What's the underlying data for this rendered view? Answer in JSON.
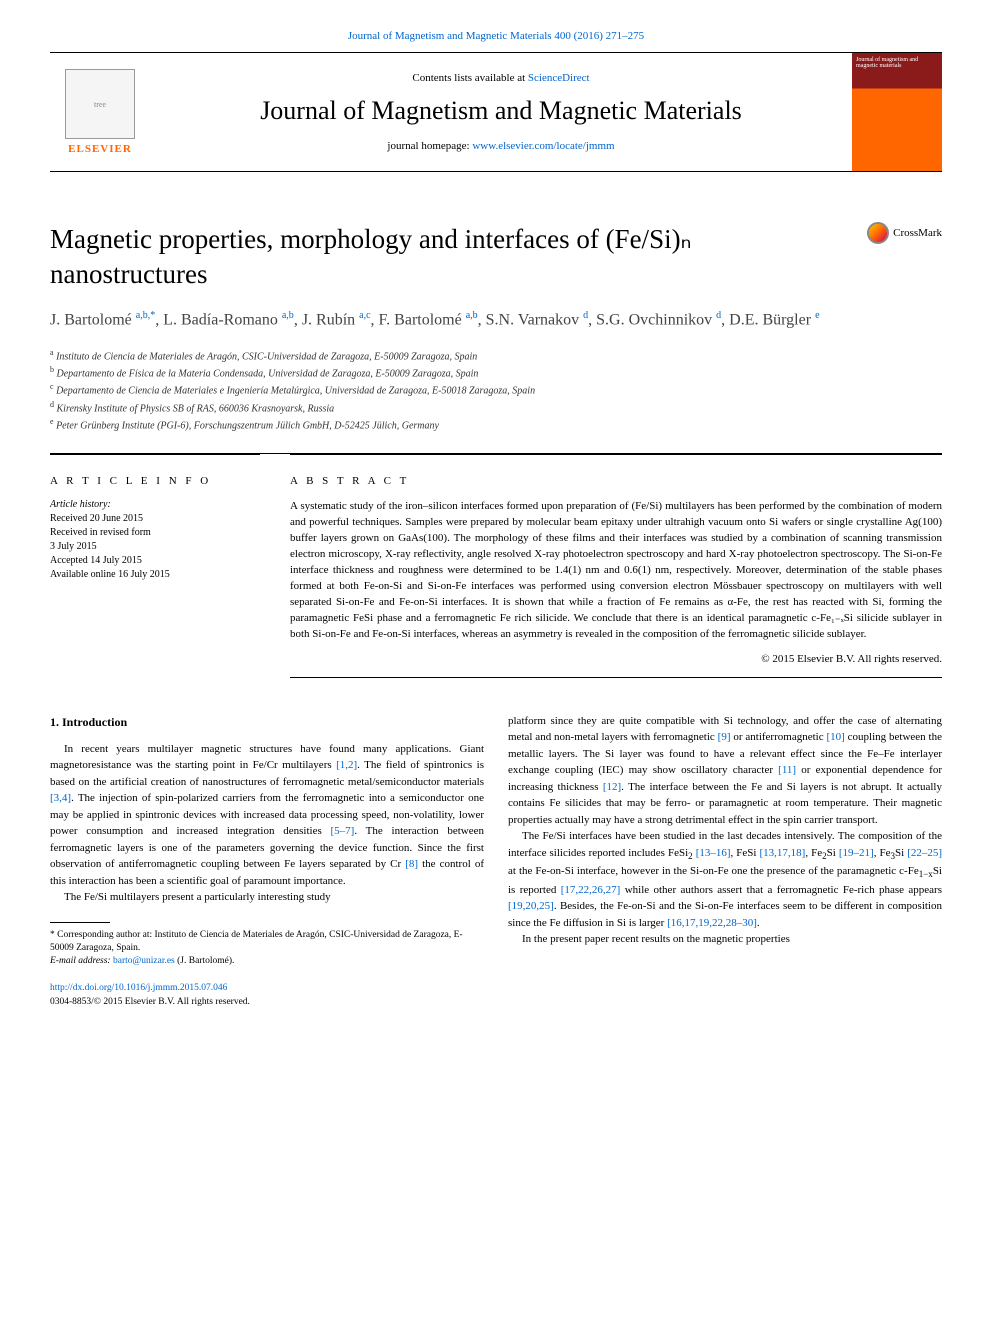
{
  "header_link": "Journal of Magnetism and Magnetic Materials 400 (2016) 271–275",
  "banner": {
    "contents_prefix": "Contents lists available at ",
    "contents_link": "ScienceDirect",
    "journal_name": "Journal of Magnetism and Magnetic Materials",
    "homepage_prefix": "journal homepage: ",
    "homepage_link": "www.elsevier.com/locate/jmmm",
    "elsevier_label": "ELSEVIER",
    "cover_text": "Journal of magnetism and magnetic materials"
  },
  "crossmark_label": "CrossMark",
  "title": "Magnetic properties, morphology and interfaces of (Fe/Si)ₙ nanostructures",
  "authors_html": "J. Bartolomé <span class='sup'>a,b,*</span>, L. Badía-Romano <span class='sup'>a,b</span>, J. Rubín <span class='sup'>a,c</span>, F. Bartolomé <span class='sup'>a,b</span>, S.N. Varnakov <span class='sup'>d</span>, S.G. Ovchinnikov <span class='sup'>d</span>, D.E. Bürgler <span class='sup'>e</span>",
  "affiliations": [
    {
      "sup": "a",
      "text": "Instituto de Ciencia de Materiales de Aragón, CSIC-Universidad de Zaragoza, E-50009 Zaragoza, Spain"
    },
    {
      "sup": "b",
      "text": "Departamento de Física de la Materia Condensada, Universidad de Zaragoza, E-50009 Zaragoza, Spain"
    },
    {
      "sup": "c",
      "text": "Departamento de Ciencia de Materiales e Ingeniería Metalúrgica, Universidad de Zaragoza, E-50018 Zaragoza, Spain"
    },
    {
      "sup": "d",
      "text": "Kirensky Institute of Physics SB of RAS, 660036 Krasnoyarsk, Russia"
    },
    {
      "sup": "e",
      "text": "Peter Grünberg Institute (PGI-6), Forschungszentrum Jülich GmbH, D-52425 Jülich, Germany"
    }
  ],
  "article_info": {
    "heading": "A R T I C L E   I N F O",
    "history_label": "Article history:",
    "history": [
      "Received 20 June 2015",
      "Received in revised form",
      "3 July 2015",
      "Accepted 14 July 2015",
      "Available online 16 July 2015"
    ]
  },
  "abstract": {
    "heading": "A B S T R A C T",
    "text": "A systematic study of the iron–silicon interfaces formed upon preparation of (Fe/Si) multilayers has been performed by the combination of modern and powerful techniques. Samples were prepared by molecular beam epitaxy under ultrahigh vacuum onto Si wafers or single crystalline Ag(100) buffer layers grown on GaAs(100). The morphology of these films and their interfaces was studied by a combination of scanning transmission electron microscopy, X-ray reflectivity, angle resolved X-ray photoelectron spectroscopy and hard X-ray photoelectron spectroscopy. The Si-on-Fe interface thickness and roughness were determined to be 1.4(1) nm and 0.6(1) nm, respectively. Moreover, determination of the stable phases formed at both Fe-on-Si and Si-on-Fe interfaces was performed using conversion electron Mössbauer spectroscopy on multilayers with well separated Si-on-Fe and Fe-on-Si interfaces. It is shown that while a fraction of Fe remains as α-Fe, the rest has reacted with Si, forming the paramagnetic FeSi phase and a ferromagnetic Fe rich silicide. We conclude that there is an identical paramagnetic c-Fe₁₋ₓSi silicide sublayer in both Si-on-Fe and Fe-on-Si interfaces, whereas an asymmetry is revealed in the composition of the ferromagnetic silicide sublayer.",
    "copyright": "© 2015 Elsevier B.V. All rights reserved."
  },
  "body": {
    "section_heading": "1. Introduction",
    "col1_p1_html": "In recent years multilayer magnetic structures have found many applications. Giant magnetoresistance was the starting point in Fe/Cr multilayers <a href='#'>[1,2]</a>. The field of spintronics is based on the artificial creation of nanostructures of ferromagnetic metal/semiconductor materials <a href='#'>[3,4]</a>. The injection of spin-polarized carriers from the ferromagnetic into a semiconductor one may be applied in spintronic devices with increased data processing speed, non-volatility, lower power consumption and increased integration densities <a href='#'>[5–7]</a>. The interaction between ferromagnetic layers is one of the parameters governing the device function. Since the first observation of antiferromagnetic coupling between Fe layers separated by Cr <a href='#'>[8]</a> the control of this interaction has been a scientific goal of paramount importance.",
    "col1_p2_html": "The Fe/Si multilayers present a particularly interesting study",
    "col2_p1_html": "platform since they are quite compatible with Si technology, and offer the case of alternating metal and non-metal layers with ferromagnetic <a href='#'>[9]</a> or antiferromagnetic <a href='#'>[10]</a> coupling between the metallic layers. The Si layer was found to have a relevant effect since the Fe–Fe interlayer exchange coupling (IEC) may show oscillatory character <a href='#'>[11]</a> or exponential dependence for increasing thickness <a href='#'>[12]</a>. The interface between the Fe and Si layers is not abrupt. It actually contains Fe silicides that may be ferro- or paramagnetic at room temperature. Their magnetic properties actually may have a strong detrimental effect in the spin carrier transport.",
    "col2_p2_html": "The Fe/Si interfaces have been studied in the last decades intensively. The composition of the interface silicides reported includes FeSi<span class='sub'>2</span> <a href='#'>[13–16]</a>, FeSi <a href='#'>[13,17,18]</a>, Fe<span class='sub'>2</span>Si <a href='#'>[19–21]</a>, Fe<span class='sub'>3</span>Si <a href='#'>[22–25]</a> at the Fe-on-Si interface, however in the Si-on-Fe one the presence of the paramagnetic c-Fe<span class='sub'>1−x</span>Si is reported <a href='#'>[17,22,26,27]</a> while other authors assert that a ferromagnetic Fe-rich phase appears <a href='#'>[19,20,25]</a>. Besides, the Fe-on-Si and the Si-on-Fe interfaces seem to be different in composition since the Fe diffusion in Si is larger <a href='#'>[16,17,19,22,28–30]</a>.",
    "col2_p3_html": "In the present paper recent results on the magnetic properties"
  },
  "footnote": {
    "corr_text": "* Corresponding author at: Instituto de Ciencia de Materiales de Aragón, CSIC-Universidad de Zaragoza, E-50009 Zaragoza, Spain.",
    "email_label": "E-mail address: ",
    "email": "barto@unizar.es",
    "email_suffix": " (J. Bartolomé)."
  },
  "footer": {
    "doi": "http://dx.doi.org/10.1016/j.jmmm.2015.07.046",
    "issn_line": "0304-8853/© 2015 Elsevier B.V. All rights reserved."
  }
}
